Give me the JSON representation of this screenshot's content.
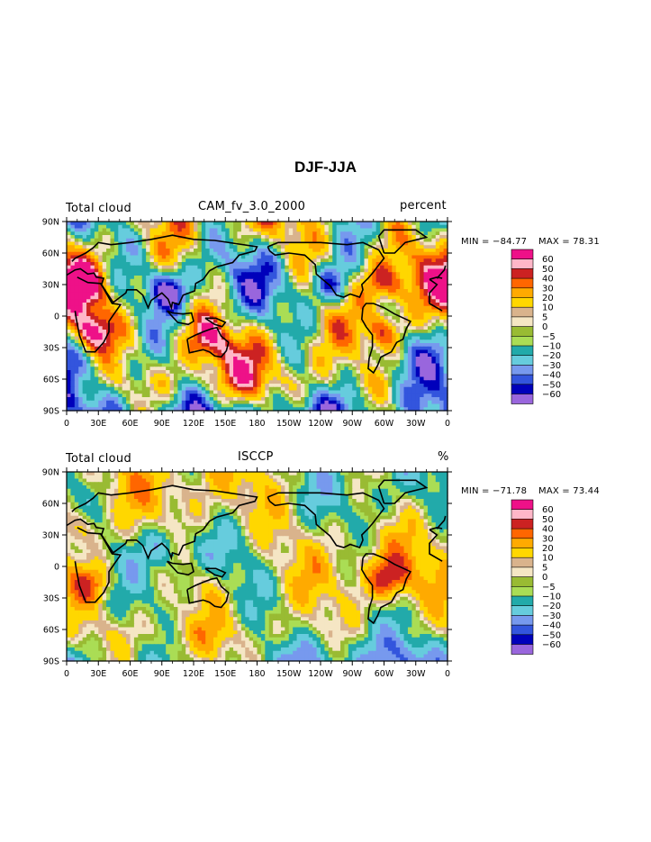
{
  "page": {
    "title": "DJF-JJA"
  },
  "panels": [
    {
      "left_label": "Total cloud",
      "center_label": "CAM_fv_3.0_2000",
      "right_label": "percent",
      "min_label": "MIN = −84.77",
      "max_label": "MAX =   78.31"
    },
    {
      "left_label": "Total cloud",
      "center_label": "ISCCP",
      "right_label": "%",
      "min_label": "MIN = −71.78",
      "max_label": "MAX =   73.44"
    }
  ],
  "chart_data": [
    {
      "type": "heatmap",
      "title": "DJF-JJA",
      "subtitle": "CAM_fv_3.0_2000",
      "left_label": "Total cloud",
      "units": "percent",
      "min": -84.77,
      "max": 78.31,
      "x_ticks": [
        "0",
        "30E",
        "60E",
        "90E",
        "120E",
        "150E",
        "180",
        "150W",
        "120W",
        "90W",
        "60W",
        "30W",
        "0"
      ],
      "y_ticks": [
        "90N",
        "60N",
        "30N",
        "0",
        "30S",
        "60S",
        "90S"
      ],
      "xlim": [
        0,
        360
      ],
      "ylim": [
        -90,
        90
      ],
      "colorbar_levels": [
        "60",
        "50",
        "40",
        "30",
        "20",
        "10",
        "5",
        "0",
        "−5",
        "−10",
        "−20",
        "−30",
        "−40",
        "−50",
        "−60"
      ],
      "colorbar_colors": [
        "#ee1188",
        "#ffb6c8",
        "#cc2222",
        "#ff6600",
        "#ffaa00",
        "#ffd700",
        "#d9b38c",
        "#f5e6c4",
        "#99bb33",
        "#aadd55",
        "#22aaaa",
        "#66ccdd",
        "#7799ee",
        "#3355dd",
        "#0000bb",
        "#9966dd"
      ]
    },
    {
      "type": "heatmap",
      "title": "DJF-JJA",
      "subtitle": "ISCCP",
      "left_label": "Total cloud",
      "units": "%",
      "min": -71.78,
      "max": 73.44,
      "x_ticks": [
        "0",
        "30E",
        "60E",
        "90E",
        "120E",
        "150E",
        "180",
        "150W",
        "120W",
        "90W",
        "60W",
        "30W",
        "0"
      ],
      "y_ticks": [
        "90N",
        "60N",
        "30N",
        "0",
        "30S",
        "60S",
        "90S"
      ],
      "xlim": [
        0,
        360
      ],
      "ylim": [
        -90,
        90
      ],
      "colorbar_levels": [
        "60",
        "50",
        "40",
        "30",
        "20",
        "10",
        "5",
        "0",
        "−5",
        "−10",
        "−20",
        "−30",
        "−40",
        "−50",
        "−60"
      ],
      "colorbar_colors": [
        "#ee1188",
        "#ffb6c8",
        "#cc2222",
        "#ff6600",
        "#ffaa00",
        "#ffd700",
        "#d9b38c",
        "#f5e6c4",
        "#99bb33",
        "#aadd55",
        "#22aaaa",
        "#66ccdd",
        "#7799ee",
        "#3355dd",
        "#0000bb",
        "#9966dd"
      ]
    }
  ]
}
